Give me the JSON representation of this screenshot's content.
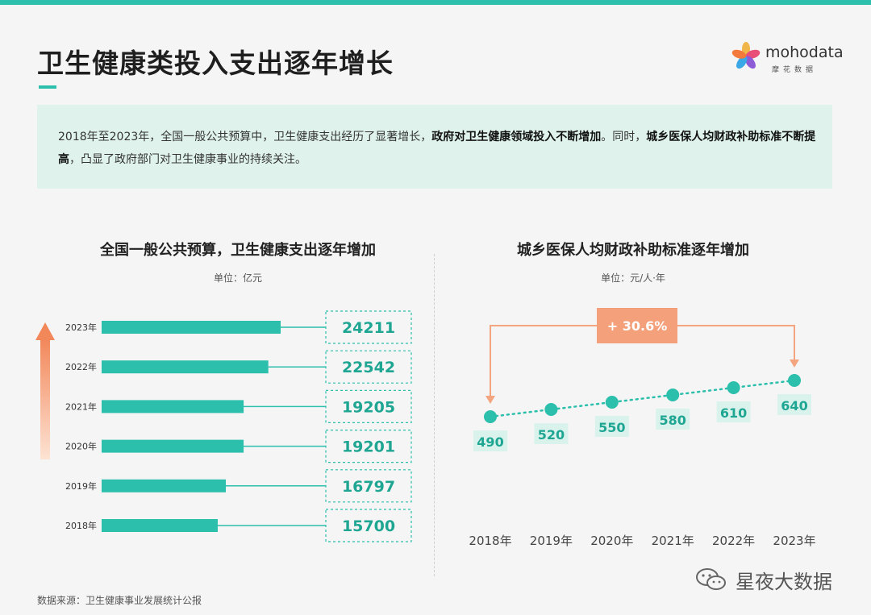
{
  "header": {
    "title": "卫生健康类投入支出逐年增长",
    "logo_text": "mohodata",
    "logo_sub": "摩花数据"
  },
  "summary": {
    "part1": "2018年至2023年，全国一般公共预算中，卫生健康支出经历了显著增长，",
    "bold1": "政府对卫生健康领域投入不断增加",
    "part2": "。同时，",
    "bold2": "城乡医保人均财政补助标准不断提高",
    "part3": "，凸显了政府部门对卫生健康事业的持续关注。"
  },
  "left_chart": {
    "title": "全国一般公共预算，卫生健康支出逐年增加",
    "unit": "单位：亿元"
  },
  "right_chart": {
    "title": "城乡医保人均财政补助标准逐年增加",
    "unit": "单位：元/人·年",
    "growth_label": "+ 30.6%"
  },
  "footer": {
    "source": "数据来源：卫生健康事业发展统计公报",
    "watermark": "星夜大数据"
  },
  "colors": {
    "teal": "#2bbfac",
    "teal_light": "#d9f2ec",
    "orange": "#f4a57f",
    "orange_fill": "#f4a07a",
    "arrow_gradient_start": "#fde3d4",
    "arrow_gradient_end": "#f2875a"
  },
  "chart_data": [
    {
      "type": "bar",
      "orientation": "horizontal",
      "categories": [
        "2023年",
        "2022年",
        "2021年",
        "2020年",
        "2019年",
        "2018年"
      ],
      "values": [
        24211,
        22542,
        19205,
        19201,
        16797,
        15700
      ],
      "title": "全国一般公共预算，卫生健康支出逐年增加",
      "unit": "单位：亿元",
      "grid": false
    },
    {
      "type": "line",
      "categories": [
        "2018年",
        "2019年",
        "2020年",
        "2021年",
        "2022年",
        "2023年"
      ],
      "values": [
        490,
        520,
        550,
        580,
        610,
        640
      ],
      "title": "城乡医保人均财政补助标准逐年增加",
      "unit": "单位：元/人·年",
      "annotation": "+ 30.6%",
      "grid": false
    }
  ]
}
